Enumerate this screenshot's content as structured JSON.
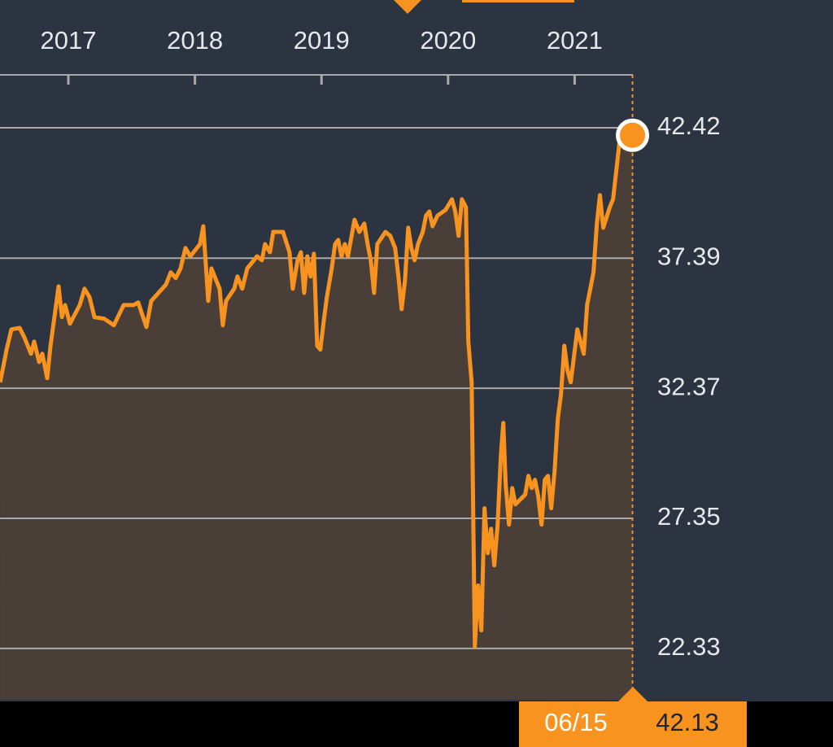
{
  "chart_data": {
    "type": "line",
    "x": [
      2016.461,
      2016.512,
      2016.55,
      2016.615,
      2016.653,
      2016.705,
      2016.73,
      2016.769,
      2016.794,
      2016.833,
      2016.859,
      2016.923,
      2016.949,
      2016.974,
      2017.013,
      2017.09,
      2017.128,
      2017.167,
      2017.206,
      2017.283,
      2017.36,
      2017.437,
      2017.514,
      2017.552,
      2017.617,
      2017.655,
      2017.771,
      2017.809,
      2017.848,
      2017.886,
      2017.925,
      2017.963,
      2018.04,
      2018.066,
      2018.105,
      2018.13,
      2018.195,
      2018.22,
      2018.246,
      2018.31,
      2018.336,
      2018.374,
      2018.413,
      2018.49,
      2018.529,
      2018.554,
      2018.593,
      2018.619,
      2018.696,
      2018.747,
      2018.773,
      2018.811,
      2018.837,
      2018.863,
      2018.888,
      2018.914,
      2018.94,
      2018.966,
      2018.991,
      2019.017,
      2019.042,
      2019.081,
      2019.107,
      2019.132,
      2019.158,
      2019.184,
      2019.209,
      2019.261,
      2019.299,
      2019.338,
      2019.364,
      2019.389,
      2019.415,
      2019.441,
      2019.505,
      2019.543,
      2019.582,
      2019.608,
      2019.633,
      2019.659,
      2019.685,
      2019.71,
      2019.736,
      2019.762,
      2019.8,
      2019.826,
      2019.852,
      2019.877,
      2019.916,
      2019.98,
      2020.031,
      2020.057,
      2020.083,
      2020.109,
      2020.141,
      2020.16,
      2020.186,
      2020.211,
      2020.237,
      2020.263,
      2020.288,
      2020.314,
      2020.34,
      2020.365,
      2020.391,
      2020.417,
      2020.436,
      2020.455,
      2020.481,
      2020.507,
      2020.532,
      2020.609,
      2020.635,
      2020.661,
      2020.686,
      2020.712,
      2020.738,
      2020.764,
      2020.789,
      2020.815,
      2020.841,
      2020.867,
      2020.892,
      2020.918,
      2020.943,
      2020.969,
      2021.021,
      2021.072,
      2021.098,
      2021.149,
      2021.175,
      2021.2,
      2021.226,
      2021.277,
      2021.303,
      2021.329,
      2021.354,
      2021.393,
      2021.457
    ],
    "values": [
      32.6,
      33.86,
      34.64,
      34.7,
      34.33,
      33.7,
      34.17,
      33.38,
      33.7,
      32.76,
      34.01,
      36.3,
      35.11,
      35.58,
      34.86,
      35.58,
      36.21,
      35.89,
      35.11,
      35.05,
      34.8,
      35.58,
      35.58,
      35.68,
      34.73,
      35.74,
      36.37,
      36.84,
      36.62,
      36.99,
      37.78,
      37.46,
      37.93,
      38.62,
      35.74,
      36.99,
      36.21,
      34.8,
      35.74,
      36.21,
      36.68,
      36.21,
      36.99,
      37.46,
      37.31,
      37.93,
      37.62,
      38.4,
      38.4,
      37.62,
      36.21,
      37.31,
      37.62,
      36.05,
      37.46,
      36.68,
      37.56,
      34.01,
      33.86,
      34.95,
      35.89,
      36.99,
      37.93,
      38.09,
      37.46,
      37.93,
      37.46,
      38.87,
      38.4,
      38.72,
      37.93,
      37.31,
      36.05,
      37.93,
      38.4,
      38.25,
      37.78,
      36.68,
      35.42,
      36.52,
      38.56,
      37.78,
      37.31,
      37.93,
      38.4,
      39.03,
      39.19,
      38.62,
      39.03,
      39.25,
      39.66,
      39.19,
      38.25,
      39.66,
      39.35,
      34.17,
      32.6,
      22.4,
      24.76,
      23.03,
      27.74,
      26.01,
      26.95,
      25.54,
      27.11,
      29.78,
      31.03,
      28.68,
      27.11,
      28.52,
      27.89,
      28.27,
      28.99,
      28.52,
      28.84,
      28.21,
      27.11,
      28.84,
      28.99,
      27.74,
      29.15,
      31.19,
      32.13,
      34.01,
      33.07,
      32.6,
      34.64,
      33.7,
      35.58,
      36.84,
      38.72,
      39.82,
      38.56,
      39.35,
      39.66,
      40.76,
      41.86,
      41.64,
      42.13
    ],
    "color": "#f7931e",
    "xlim": [
      2016.46,
      2021.46
    ],
    "xticks": [
      2017,
      2018,
      2019,
      2020,
      2021
    ],
    "ylim": [
      20.35,
      44.46
    ],
    "yticks": [
      22.33,
      27.35,
      32.37,
      37.39,
      42.42
    ],
    "grid": true,
    "cursor": {
      "date": "06/15",
      "value": 42.13
    }
  }
}
